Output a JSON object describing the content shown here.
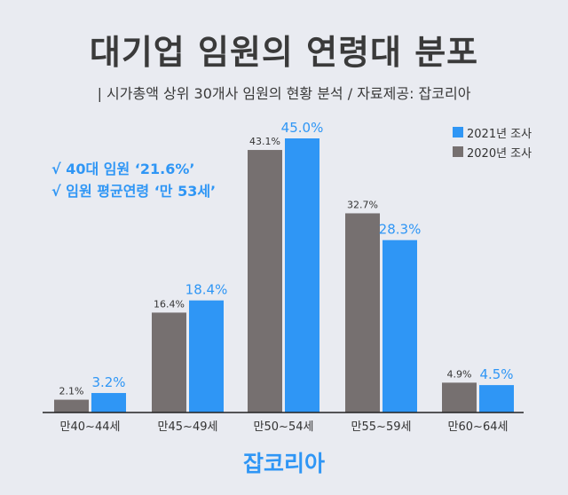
{
  "title": "대기업 임원의 연령대 분포",
  "subtitle": "| 시가총액 상위 30개사 임원의 현황 분석 / 자료제공: 잡코리아",
  "notes": [
    "√ 40대 임원 ‘21.6%’",
    "√ 임원 평균연령 ‘만 53세’"
  ],
  "footer": "잡코리아",
  "colors": {
    "2021": "#2f96f5",
    "2020": "#767070"
  },
  "chart_data": {
    "type": "bar",
    "categories": [
      "만40~44세",
      "만45~49세",
      "만50~54세",
      "만55~59세",
      "만60~64세"
    ],
    "series": [
      {
        "name": "2020년 조사",
        "values": [
          2.1,
          16.4,
          43.1,
          32.7,
          4.9
        ],
        "labels": [
          "2.1%",
          "16.4%",
          "43.1%",
          "32.7%",
          "4.9%"
        ]
      },
      {
        "name": "2021년 조사",
        "values": [
          3.2,
          18.4,
          45.0,
          28.3,
          4.5
        ],
        "labels": [
          "3.2%",
          "18.4%",
          "45.0%",
          "28.3%",
          "4.5%"
        ]
      }
    ],
    "legend": [
      "2021년 조사",
      "2020년 조사"
    ],
    "legend_position": "top-right",
    "ylim": [
      0,
      45
    ],
    "grid": false
  }
}
